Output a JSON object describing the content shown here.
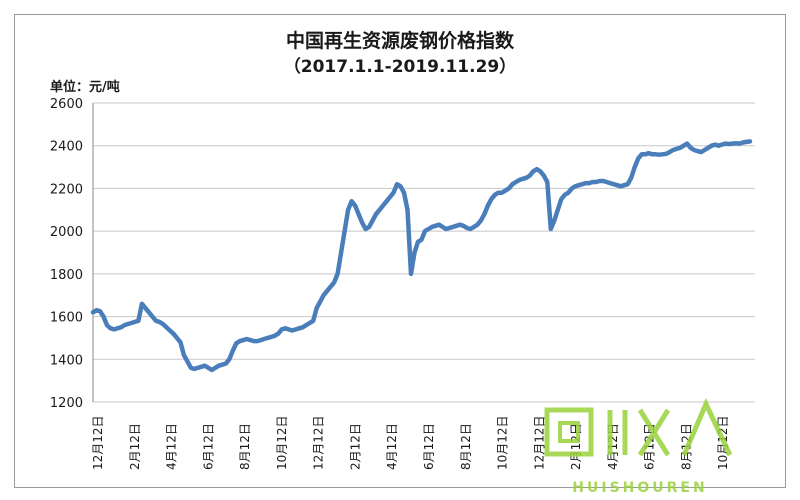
{
  "chart_data": {
    "type": "line",
    "title": "中国再生资源废钢价格指数",
    "subtitle": "（2017.1.1-2019.11.29）",
    "unit_label": "单位：元/吨",
    "ylim": [
      1200,
      2600
    ],
    "yticks": [
      1200,
      1400,
      1600,
      1800,
      2000,
      2200,
      2400,
      2600
    ],
    "grid": "horizontal",
    "series_color": "#4a7ebb",
    "xtick_labels": [
      "12月12日",
      "2月12日",
      "4月12日",
      "6月12日",
      "8月12日",
      "10月12日",
      "12月12日",
      "2月12日",
      "4月12日",
      "6月12日",
      "8月12日",
      "10月12日",
      "12月12日",
      "2月12日",
      "4月12日",
      "6月12日",
      "8月12日",
      "10月12日"
    ],
    "series": [
      {
        "values": [
          1620,
          1630,
          1625,
          1600,
          1560,
          1545,
          1540,
          1545,
          1550,
          1560,
          1565,
          1570,
          1575,
          1580,
          1660,
          1640,
          1620,
          1600,
          1580,
          1575,
          1565,
          1550,
          1535,
          1520,
          1500,
          1480,
          1420,
          1390,
          1360,
          1355,
          1360,
          1365,
          1370,
          1360,
          1350,
          1360,
          1370,
          1375,
          1380,
          1400,
          1440,
          1475,
          1485,
          1490,
          1495,
          1490,
          1485,
          1485,
          1490,
          1495,
          1500,
          1505,
          1510,
          1520,
          1540,
          1545,
          1540,
          1535,
          1540,
          1545,
          1550,
          1560,
          1570,
          1580,
          1640,
          1670,
          1700,
          1720,
          1740,
          1760,
          1800,
          1900,
          2000,
          2100,
          2140,
          2120,
          2080,
          2040,
          2010,
          2020,
          2050,
          2080,
          2100,
          2120,
          2140,
          2160,
          2180,
          2220,
          2210,
          2180,
          2100,
          1800,
          1900,
          1950,
          1960,
          2000,
          2010,
          2020,
          2025,
          2030,
          2020,
          2010,
          2015,
          2020,
          2025,
          2030,
          2025,
          2015,
          2010,
          2020,
          2030,
          2050,
          2080,
          2120,
          2150,
          2170,
          2180,
          2180,
          2190,
          2200,
          2220,
          2230,
          2240,
          2245,
          2250,
          2260,
          2280,
          2290,
          2280,
          2260,
          2230,
          2010,
          2050,
          2100,
          2150,
          2170,
          2180,
          2200,
          2210,
          2215,
          2220,
          2225,
          2225,
          2230,
          2230,
          2235,
          2235,
          2230,
          2225,
          2220,
          2215,
          2210,
          2215,
          2220,
          2250,
          2300,
          2340,
          2360,
          2360,
          2365,
          2360,
          2360,
          2358,
          2360,
          2362,
          2370,
          2380,
          2385,
          2390,
          2400,
          2410,
          2390,
          2380,
          2375,
          2370,
          2380,
          2390,
          2400,
          2405,
          2400,
          2405,
          2410,
          2408,
          2410,
          2412,
          2410,
          2415,
          2418,
          2420
        ]
      }
    ]
  },
  "watermark": {
    "text": "回收",
    "sub": "HUISHOUREN",
    "color": "#9ad23c"
  }
}
